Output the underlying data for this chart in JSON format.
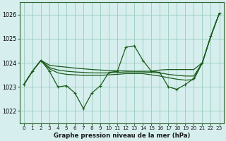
{
  "title": "Graphe pression niveau de la mer (hPa)",
  "background_color": "#d6eeee",
  "grid_color": "#99ccbb",
  "line_color": "#1a5c1a",
  "ylim": [
    1021.5,
    1026.5
  ],
  "yticks": [
    1022,
    1023,
    1024,
    1025,
    1026
  ],
  "x_labels": [
    "0",
    "1",
    "2",
    "3",
    "4",
    "5",
    "6",
    "7",
    "8",
    "9",
    "10",
    "11",
    "12",
    "13",
    "14",
    "15",
    "16",
    "17",
    "18",
    "19",
    "20",
    "21",
    "22",
    "23"
  ],
  "series_markers": [
    1023.1,
    1023.65,
    1024.1,
    1023.65,
    1023.0,
    1023.05,
    1022.75,
    1022.1,
    1022.75,
    1023.05,
    1023.6,
    1023.65,
    1024.65,
    1024.7,
    1024.1,
    1023.65,
    1023.6,
    1023.0,
    1022.9,
    1023.1,
    1023.35,
    1024.0,
    1025.1,
    1026.05
  ],
  "series_line_upper": [
    1023.1,
    1023.65,
    1024.1,
    1023.9,
    1023.85,
    1023.82,
    1023.78,
    1023.75,
    1023.72,
    1023.7,
    1023.68,
    1023.67,
    1023.66,
    1023.65,
    1023.65,
    1023.65,
    1023.7,
    1023.72,
    1023.72,
    1023.72,
    1023.72,
    1024.0,
    1025.1,
    1026.05
  ],
  "series_line_middle": [
    1023.1,
    1023.65,
    1024.1,
    1023.8,
    1023.7,
    1023.65,
    1023.62,
    1023.6,
    1023.58,
    1023.58,
    1023.58,
    1023.6,
    1023.62,
    1023.62,
    1023.62,
    1023.6,
    1023.58,
    1023.52,
    1023.48,
    1023.45,
    1023.45,
    1024.0,
    1025.1,
    1026.05
  ],
  "series_line_lower": [
    1023.1,
    1023.65,
    1024.1,
    1023.75,
    1023.58,
    1023.52,
    1023.5,
    1023.48,
    1023.48,
    1023.48,
    1023.5,
    1023.52,
    1023.55,
    1023.55,
    1023.55,
    1023.5,
    1023.45,
    1023.38,
    1023.32,
    1023.28,
    1023.3,
    1024.0,
    1025.1,
    1026.05
  ]
}
